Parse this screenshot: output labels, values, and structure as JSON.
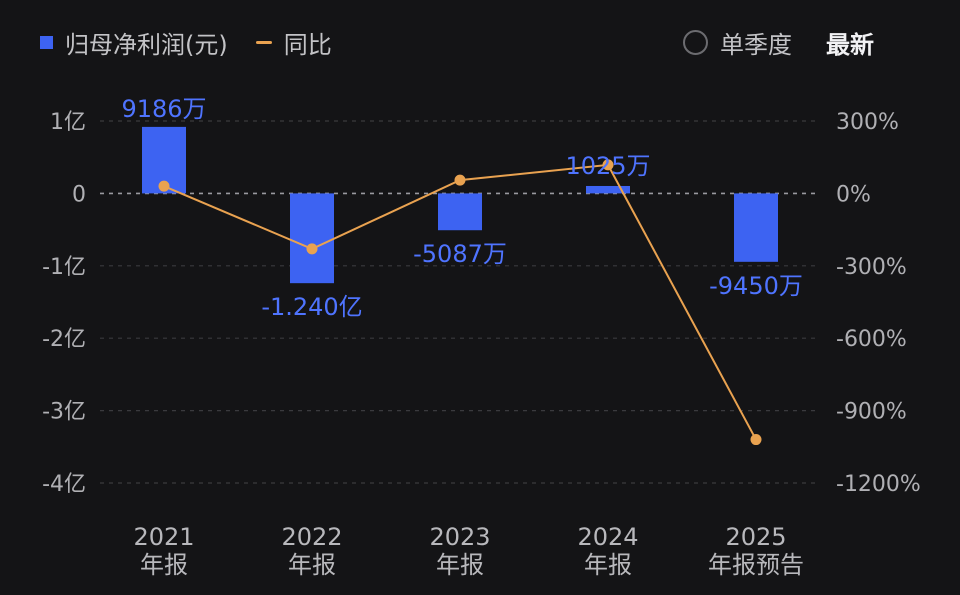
{
  "legend": {
    "series1_label": "归母净利润(元)",
    "series2_label": "同比"
  },
  "controls": {
    "quarterly_label": "单季度",
    "latest_label": "最新"
  },
  "colors": {
    "bar": "#3d63f2",
    "line": "#e9a250",
    "background": "#141416"
  },
  "chart_data": {
    "type": "bar",
    "categories": [
      "2021\n年报",
      "2022\n年报",
      "2023\n年报",
      "2024\n年报",
      "2025\n年报预告"
    ],
    "series": [
      {
        "name": "归母净利润(元)",
        "type": "bar",
        "axis": "left",
        "values": [
          91860000,
          -124000000,
          -50870000,
          10250000,
          -94500000
        ],
        "labels": [
          "9186万",
          "-1.240亿",
          "-5087万",
          "1025万",
          "-9450万"
        ]
      },
      {
        "name": "同比",
        "type": "line",
        "axis": "right",
        "values": [
          30,
          -230,
          55,
          118,
          -1020
        ]
      }
    ],
    "left_axis": {
      "ticks": [
        100000000,
        0,
        -100000000,
        -200000000,
        -300000000,
        -400000000
      ],
      "tick_labels": [
        "1亿",
        "0",
        "-1亿",
        "-2亿",
        "-3亿",
        "-4亿"
      ],
      "ylim": [
        -400000000,
        100000000
      ]
    },
    "right_axis": {
      "ticks": [
        300,
        0,
        -300,
        -600,
        -900,
        -1200
      ],
      "tick_labels": [
        "300%",
        "0%",
        "-300%",
        "-600%",
        "-900%",
        "-1200%"
      ],
      "ylim": [
        -1200,
        300
      ]
    },
    "grid": "dashed",
    "legend_position": "top-left"
  }
}
